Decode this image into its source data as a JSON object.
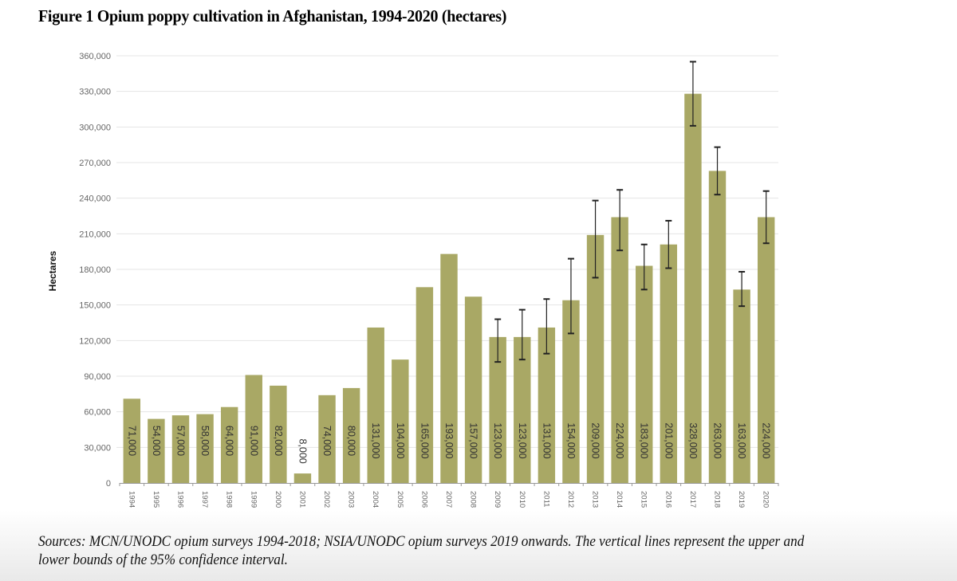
{
  "title": "Figure 1 Opium poppy cultivation in Afghanistan, 1994-2020 (hectares)",
  "sources": "Sources: MCN/UNODC opium surveys 1994-2018; NSIA/UNODC opium surveys 2019 onwards. The vertical lines represent the upper and lower bounds of the 95% confidence interval.",
  "colors": {
    "bar": "#a9a865",
    "error_bar": "#222222",
    "grid": "#e4e4e4",
    "axis": "#999999"
  },
  "chart_data": {
    "type": "bar",
    "title": "Figure 1 Opium poppy cultivation in Afghanistan, 1994-2020 (hectares)",
    "xlabel": "",
    "ylabel": "Hectares",
    "ylim": [
      0,
      360000
    ],
    "yticks": [
      0,
      30000,
      60000,
      90000,
      120000,
      150000,
      180000,
      210000,
      240000,
      270000,
      300000,
      330000,
      360000
    ],
    "ytick_labels": [
      "0",
      "30,000",
      "60,000",
      "90,000",
      "120,000",
      "150,000",
      "180,000",
      "210,000",
      "240,000",
      "270,000",
      "300,000",
      "330,000",
      "360,000"
    ],
    "grid": true,
    "legend": "none",
    "categories": [
      "1994",
      "1995",
      "1996",
      "1997",
      "1998",
      "1999",
      "2000",
      "2001",
      "2002",
      "2003",
      "2004",
      "2005",
      "2006",
      "2007",
      "2008",
      "2009",
      "2010",
      "2011",
      "2012",
      "2013",
      "2014",
      "2015",
      "2016",
      "2017",
      "2018",
      "2019",
      "2020"
    ],
    "values": [
      71000,
      54000,
      57000,
      58000,
      64000,
      91000,
      82000,
      8000,
      74000,
      80000,
      131000,
      104000,
      165000,
      193000,
      157000,
      123000,
      123000,
      131000,
      154000,
      209000,
      224000,
      183000,
      201000,
      328000,
      263000,
      163000,
      224000
    ],
    "data_labels": [
      "71,000",
      "54,000",
      "57,000",
      "58,000",
      "64,000",
      "91,000",
      "82,000",
      "8,000",
      "74,000",
      "80,000",
      "131,000",
      "104,000",
      "165,000",
      "193,000",
      "157,000",
      "123,000",
      "123,000",
      "131,000",
      "154,000",
      "209,000",
      "224,000",
      "183,000",
      "201,000",
      "328,000",
      "263,000",
      "163,000",
      "224,000"
    ],
    "error_bars": {
      "2009": [
        102000,
        138000
      ],
      "2010": [
        104000,
        146000
      ],
      "2011": [
        109000,
        155000
      ],
      "2012": [
        126000,
        189000
      ],
      "2013": [
        173000,
        238000
      ],
      "2014": [
        196000,
        247000
      ],
      "2015": [
        163000,
        201000
      ],
      "2016": [
        181000,
        221000
      ],
      "2017": [
        301000,
        355000
      ],
      "2018": [
        243000,
        283000
      ],
      "2019": [
        149000,
        178000
      ],
      "2020": [
        202000,
        246000
      ]
    }
  }
}
